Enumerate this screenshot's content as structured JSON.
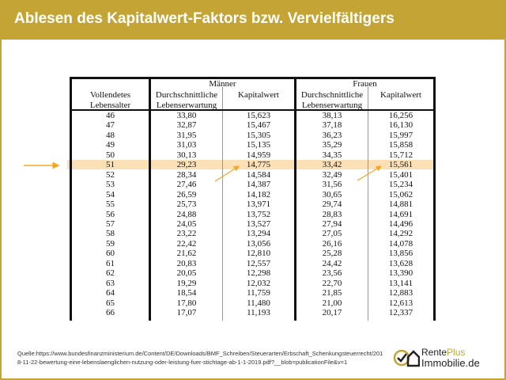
{
  "title": "Ablesen des Kapitalwert-Faktors bzw. Vervielfältigers",
  "table": {
    "group_men": "Männer",
    "group_women": "Frauen",
    "col_age": [
      "Vollendetes",
      "Lebensalter"
    ],
    "col_life": [
      "Durchschnittliche",
      "Lebenserwartung"
    ],
    "col_kw": "Kapitalwert",
    "highlight_age": "51",
    "rows": [
      [
        "46",
        "33,80",
        "15,623",
        "38,13",
        "16,256"
      ],
      [
        "47",
        "32,87",
        "15,467",
        "37,18",
        "16,130"
      ],
      [
        "48",
        "31,95",
        "15,305",
        "36,23",
        "15,997"
      ],
      [
        "49",
        "31,03",
        "15,135",
        "35,29",
        "15,858"
      ],
      [
        "50",
        "30,13",
        "14,959",
        "34,35",
        "15,712"
      ],
      [
        "51",
        "29,23",
        "14,775",
        "33,42",
        "15,561"
      ],
      [
        "52",
        "28,34",
        "14,584",
        "32,49",
        "15,401"
      ],
      [
        "53",
        "27,46",
        "14,387",
        "31,56",
        "15,234"
      ],
      [
        "54",
        "26,59",
        "14,182",
        "30,65",
        "15,062"
      ],
      [
        "55",
        "25,73",
        "13,971",
        "29,74",
        "14,881"
      ],
      [
        "56",
        "24,88",
        "13,752",
        "28,83",
        "14,691"
      ],
      [
        "57",
        "24,05",
        "13,527",
        "27,94",
        "14,496"
      ],
      [
        "58",
        "23,22",
        "13,294",
        "27,05",
        "14,292"
      ],
      [
        "59",
        "22,42",
        "13,056",
        "26,16",
        "14,078"
      ],
      [
        "60",
        "21,62",
        "12,810",
        "25,28",
        "13,856"
      ],
      [
        "61",
        "20,83",
        "12,557",
        "24,42",
        "13,628"
      ],
      [
        "62",
        "20,05",
        "12,298",
        "23,56",
        "13,390"
      ],
      [
        "63",
        "19,29",
        "12,032",
        "22,70",
        "13,141"
      ],
      [
        "64",
        "18,54",
        "11,759",
        "21,85",
        "12,883"
      ],
      [
        "65",
        "17,80",
        "11,480",
        "21,00",
        "12,613"
      ],
      [
        "66",
        "17,07",
        "11,193",
        "20,17",
        "12,337"
      ]
    ]
  },
  "source": [
    "Quelle:https://www.bundesfinanzministerium.de/Content/DE/Downloads/BMF_Schreiben/Steuerarten/Erbschaft_Schenkungsteuerrecht/201",
    "8-11-22-bewertung-eine-lebenslaenglichen-nutzung-oder-leistung-fuer-stichtage-ab-1-1-2019.pdf?__blob=publicationFile&v=1"
  ],
  "logo": {
    "part1": "Rente",
    "part2": "Plus",
    "part3": "Immobilie.de"
  },
  "colors": {
    "gold": "#c5a436",
    "highlight": "#fbd8a3",
    "arrow": "#f5a623"
  }
}
